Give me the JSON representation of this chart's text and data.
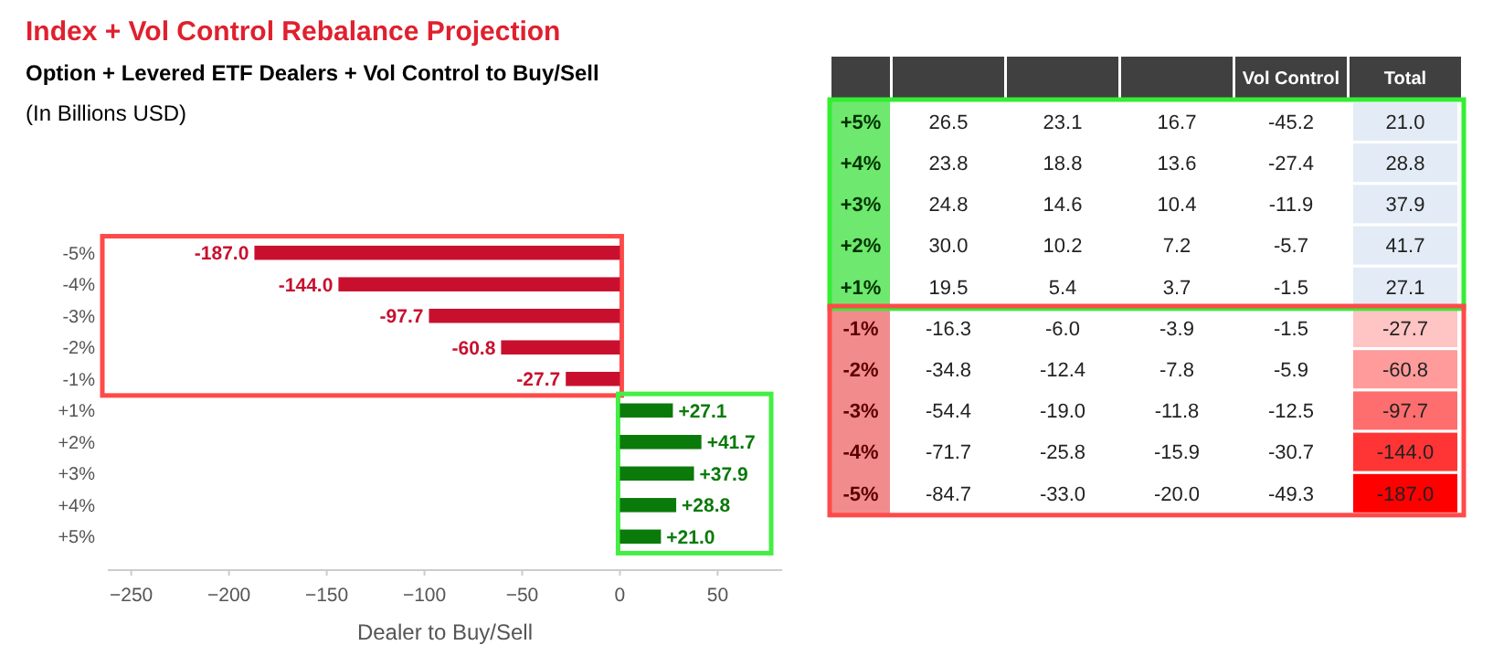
{
  "chart_data": [
    {
      "type": "bar",
      "orientation": "horizontal",
      "title": "Index + Vol Control Rebalance Projection",
      "subtitle": "Option + Levered ETF Dealers + Vol Control to Buy/Sell",
      "annotations": [
        "(In Billions USD)"
      ],
      "xlabel": "Dealer to Buy/Sell",
      "categories": [
        "-5%",
        "-4%",
        "-3%",
        "-2%",
        "-1%",
        "+1%",
        "+2%",
        "+3%",
        "+4%",
        "+5%"
      ],
      "values": [
        -187.0,
        -144.0,
        -97.7,
        -60.8,
        -27.7,
        27.1,
        41.7,
        37.9,
        28.8,
        21.0
      ],
      "colors": [
        "#c8102e",
        "#c8102e",
        "#c8102e",
        "#c8102e",
        "#c8102e",
        "#0a7a0a",
        "#0a7a0a",
        "#0a7a0a",
        "#0a7a0a",
        "#0a7a0a"
      ],
      "value_labels": [
        "-187.0",
        "-144.0",
        "-97.7",
        "-60.8",
        "-27.7",
        "+27.1",
        "+41.7",
        "+37.9",
        "+28.8",
        "+21.0"
      ],
      "xlim": [
        -262,
        83
      ],
      "xticks": [
        -250,
        -200,
        -150,
        -100,
        -50,
        0,
        50
      ],
      "grid": false
    },
    {
      "type": "heatmap",
      "categories": [
        null,
        null,
        null,
        "Vol Control",
        "Total"
      ],
      "y_categories": [
        "+5%",
        "+4%",
        "+3%",
        "+2%",
        "+1%",
        "-1%",
        "-2%",
        "-3%",
        "-4%",
        "-5%"
      ],
      "cells": [
        [
          26.5,
          23.1,
          16.7,
          -45.2,
          21.0
        ],
        [
          23.8,
          18.8,
          13.6,
          -27.4,
          28.8
        ],
        [
          24.8,
          14.6,
          10.4,
          -11.9,
          37.9
        ],
        [
          30.0,
          10.2,
          7.2,
          -5.7,
          41.7
        ],
        [
          19.5,
          5.4,
          3.7,
          -1.5,
          27.1
        ],
        [
          -16.3,
          -6.0,
          -3.9,
          -1.5,
          -27.7
        ],
        [
          -34.8,
          -12.4,
          -7.8,
          -5.9,
          -60.8
        ],
        [
          -54.4,
          -19.0,
          -11.8,
          -12.5,
          -97.7
        ],
        [
          -71.7,
          -25.8,
          -15.9,
          -30.7,
          -144.0
        ],
        [
          -84.7,
          -33.0,
          -20.0,
          -49.3,
          -187.0
        ]
      ],
      "cell_labels": [
        [
          "26.5",
          "23.1",
          "16.7",
          "-45.2",
          "21.0"
        ],
        [
          "23.8",
          "18.8",
          "13.6",
          "-27.4",
          "28.8"
        ],
        [
          "24.8",
          "14.6",
          "10.4",
          "-11.9",
          "37.9"
        ],
        [
          "30.0",
          "10.2",
          "7.2",
          "-5.7",
          "41.7"
        ],
        [
          "19.5",
          "5.4",
          "3.7",
          "-1.5",
          "27.1"
        ],
        [
          "-16.3",
          "-6.0",
          "-3.9",
          "-1.5",
          "-27.7"
        ],
        [
          "-34.8",
          "-12.4",
          "-7.8",
          "-5.9",
          "-60.8"
        ],
        [
          "-54.4",
          "-19.0",
          "-11.8",
          "-12.5",
          "-97.7"
        ],
        [
          "-71.7",
          "-25.8",
          "-15.9",
          "-30.7",
          "-144.0"
        ],
        [
          "-84.7",
          "-33.0",
          "-20.0",
          "-49.3",
          "-187.0"
        ]
      ]
    }
  ]
}
